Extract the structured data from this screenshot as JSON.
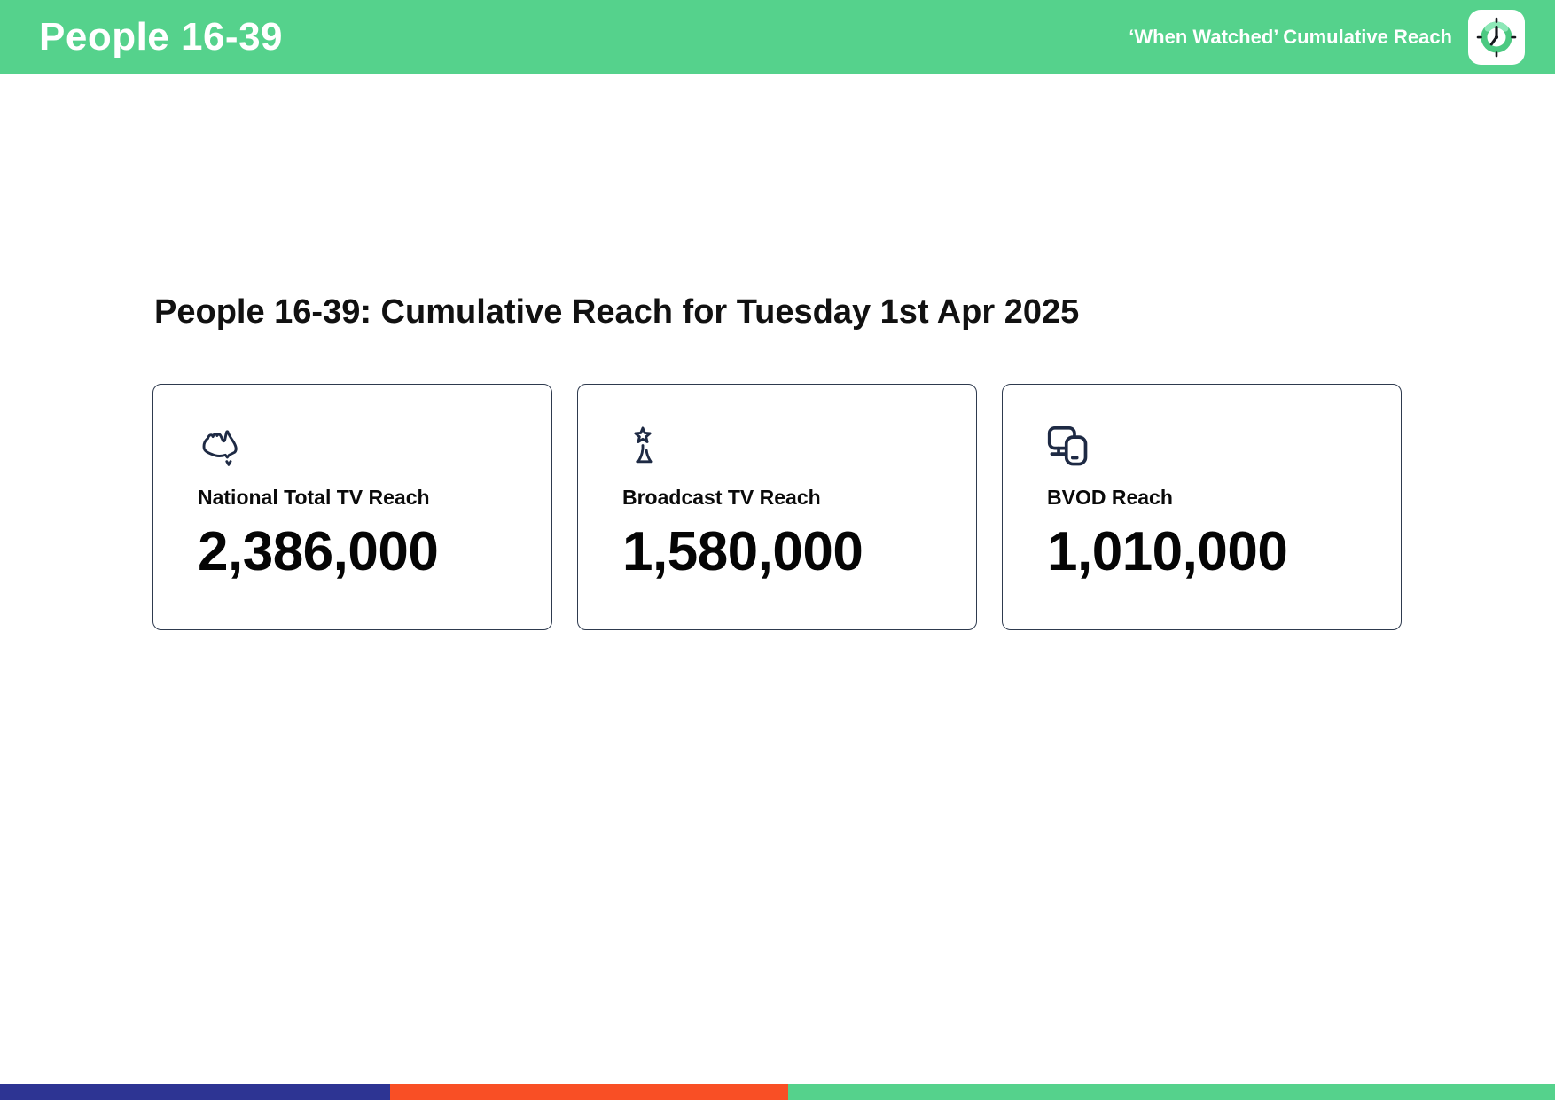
{
  "header": {
    "title": "People 16-39",
    "subtitle": "‘When Watched’ Cumulative Reach",
    "bg_color": "#55d28c",
    "logo": "clock-logo"
  },
  "main": {
    "heading": "People 16-39: Cumulative Reach for Tuesday 1st Apr 2025",
    "cards": [
      {
        "icon": "australia-map-icon",
        "label": "National Total TV Reach",
        "value": "2,386,000"
      },
      {
        "icon": "broadcast-tower-icon",
        "label": "Broadcast TV Reach",
        "value": "1,580,000"
      },
      {
        "icon": "devices-icon",
        "label": "BVOD Reach",
        "value": "1,010,000"
      }
    ],
    "icon_color": "#1e2a44"
  },
  "footer": {
    "segments": [
      {
        "name": "blue-segment",
        "color": "#2d3493",
        "width_pct": 25.1
      },
      {
        "name": "orange-segment",
        "color": "#f94f25",
        "width_pct": 25.6
      },
      {
        "name": "green-segment",
        "color": "#55d28c",
        "width_pct": 49.3
      }
    ]
  }
}
